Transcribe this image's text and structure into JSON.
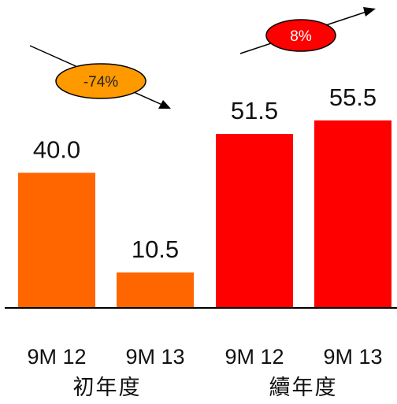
{
  "chart_data": {
    "type": "bar",
    "categories": [
      "9M 12",
      "9M 13",
      "9M 12",
      "9M 13"
    ],
    "values": [
      40.0,
      10.5,
      51.5,
      55.5
    ],
    "value_labels": [
      "40.0",
      "10.5",
      "51.5",
      "55.5"
    ],
    "groups": [
      "初年度",
      "續年度"
    ],
    "ylim": [
      0,
      60
    ],
    "grid": false,
    "colors": [
      "#ff6600",
      "#ff6600",
      "#ff0000",
      "#ff0000"
    ],
    "annotations": [
      {
        "text": "-74%",
        "color": "#ff9900"
      },
      {
        "text": "8%",
        "color": "#ff0000"
      }
    ],
    "title": "",
    "xlabel": "",
    "ylabel": ""
  }
}
